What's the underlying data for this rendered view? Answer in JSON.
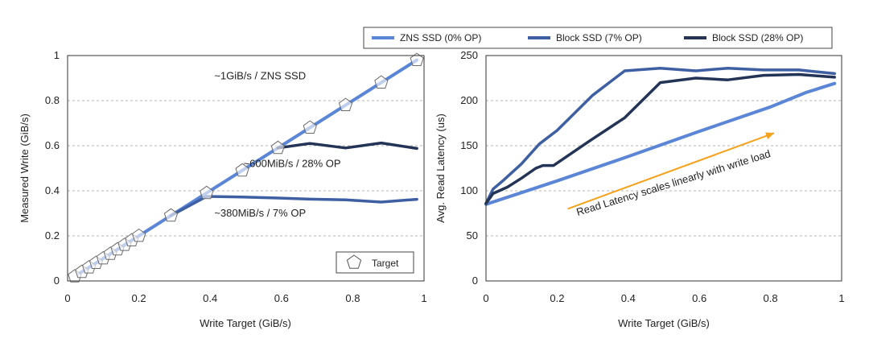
{
  "colors": {
    "zns": "#5b85d6",
    "block7": "#3f5fa3",
    "block28": "#243457",
    "arrow": "#f5a21b",
    "grid": "#b5b5b5",
    "axis": "#333333"
  },
  "legend": {
    "items": [
      {
        "label": "ZNS SSD (0% OP)",
        "color_key": "zns"
      },
      {
        "label": "Block SSD (7% OP)",
        "color_key": "block7"
      },
      {
        "label": "Block SSD (28% OP)",
        "color_key": "block28"
      }
    ]
  },
  "chart_data": [
    {
      "type": "line",
      "name": "left",
      "xlabel": "Write Target (GiB/s)",
      "ylabel": "Measured Write (GiB/s)",
      "xlim": [
        0,
        1
      ],
      "ylim": [
        0,
        1
      ],
      "xticks": [
        0,
        0.2,
        0.4,
        0.6,
        0.8,
        1
      ],
      "xticklabels": [
        "0",
        "0.2",
        "0.4",
        "0.6",
        "0.8",
        "1"
      ],
      "yticks": [
        0,
        0.2,
        0.4,
        0.6,
        0.8,
        1
      ],
      "yticklabels": [
        "0",
        "0.2",
        "0.4",
        "0.6",
        "0.8",
        "1"
      ],
      "grid": "horizontal-dashed",
      "series": [
        {
          "name": "ZNS SSD (0% OP)",
          "color_key": "zns",
          "width": 4,
          "x": [
            0.03,
            0.98
          ],
          "y": [
            0.03,
            0.98
          ]
        },
        {
          "name": "Block SSD (7% OP)",
          "color_key": "block7",
          "width": 3.5,
          "x": [
            0.29,
            0.39,
            0.49,
            0.59,
            0.68,
            0.78,
            0.88,
            0.98
          ],
          "y": [
            0.29,
            0.375,
            0.372,
            0.368,
            0.363,
            0.36,
            0.35,
            0.362
          ]
        },
        {
          "name": "Block SSD (28% OP)",
          "color_key": "block28",
          "width": 3.5,
          "x": [
            0.59,
            0.68,
            0.78,
            0.88,
            0.98
          ],
          "y": [
            0.59,
            0.61,
            0.59,
            0.612,
            0.588
          ]
        }
      ],
      "markers": {
        "name": "Target",
        "x": [
          0.02,
          0.04,
          0.06,
          0.08,
          0.1,
          0.12,
          0.14,
          0.16,
          0.18,
          0.2,
          0.29,
          0.39,
          0.49,
          0.59,
          0.68,
          0.78,
          0.88,
          0.98
        ],
        "y": [
          0.02,
          0.04,
          0.06,
          0.08,
          0.1,
          0.12,
          0.14,
          0.16,
          0.18,
          0.2,
          0.29,
          0.39,
          0.49,
          0.59,
          0.68,
          0.78,
          0.88,
          0.98
        ]
      },
      "annotations": [
        {
          "text": "~1GiB/s / ZNS SSD",
          "x": 0.54,
          "y": 0.895
        },
        {
          "text": "~600MiB/s / 28% OP",
          "x": 0.63,
          "y": 0.505
        },
        {
          "text": "~380MiB/s / 7% OP",
          "x": 0.54,
          "y": 0.285
        }
      ],
      "legend_entry": "Target"
    },
    {
      "type": "line",
      "name": "right",
      "xlabel": "Write Target (GiB/s)",
      "ylabel": "Avg. Read Latency (us)",
      "xlim": [
        0,
        1
      ],
      "ylim": [
        0,
        250
      ],
      "xticks": [
        0,
        0.2,
        0.4,
        0.6,
        0.8,
        1
      ],
      "xticklabels": [
        "0",
        "0.2",
        "0.4",
        "0.6",
        "0.8",
        "1"
      ],
      "yticks": [
        0,
        50,
        100,
        150,
        200,
        250
      ],
      "yticklabels": [
        "0",
        "50",
        "100",
        "150",
        "200",
        "250"
      ],
      "grid": "horizontal-dashed",
      "series": [
        {
          "name": "ZNS SSD (0% OP)",
          "color_key": "zns",
          "width": 4,
          "x": [
            0.0,
            0.2,
            0.4,
            0.6,
            0.8,
            0.9,
            0.98
          ],
          "y": [
            85,
            111,
            138,
            166,
            193,
            209,
            219
          ]
        },
        {
          "name": "Block SSD (7% OP)",
          "color_key": "block7",
          "width": 3.5,
          "x": [
            0.0,
            0.02,
            0.05,
            0.1,
            0.15,
            0.2,
            0.3,
            0.39,
            0.49,
            0.59,
            0.68,
            0.78,
            0.88,
            0.98
          ],
          "y": [
            86,
            102,
            112,
            130,
            152,
            167,
            206,
            233,
            236,
            233,
            236,
            234,
            234,
            230
          ]
        },
        {
          "name": "Block SSD (28% OP)",
          "color_key": "block28",
          "width": 3.5,
          "x": [
            0.0,
            0.02,
            0.06,
            0.1,
            0.14,
            0.16,
            0.19,
            0.29,
            0.39,
            0.49,
            0.59,
            0.68,
            0.78,
            0.88,
            0.98
          ],
          "y": [
            86,
            97,
            104,
            114,
            125,
            128,
            128,
            155,
            181,
            220,
            225,
            223,
            228,
            229,
            226
          ]
        }
      ],
      "arrow": {
        "from": [
          0.23,
          80
        ],
        "to": [
          0.81,
          164
        ]
      },
      "annotations": [
        {
          "text": "Read Latency scales linearly with write load",
          "x": 0.53,
          "y": 105,
          "rotate": -17
        }
      ]
    }
  ]
}
